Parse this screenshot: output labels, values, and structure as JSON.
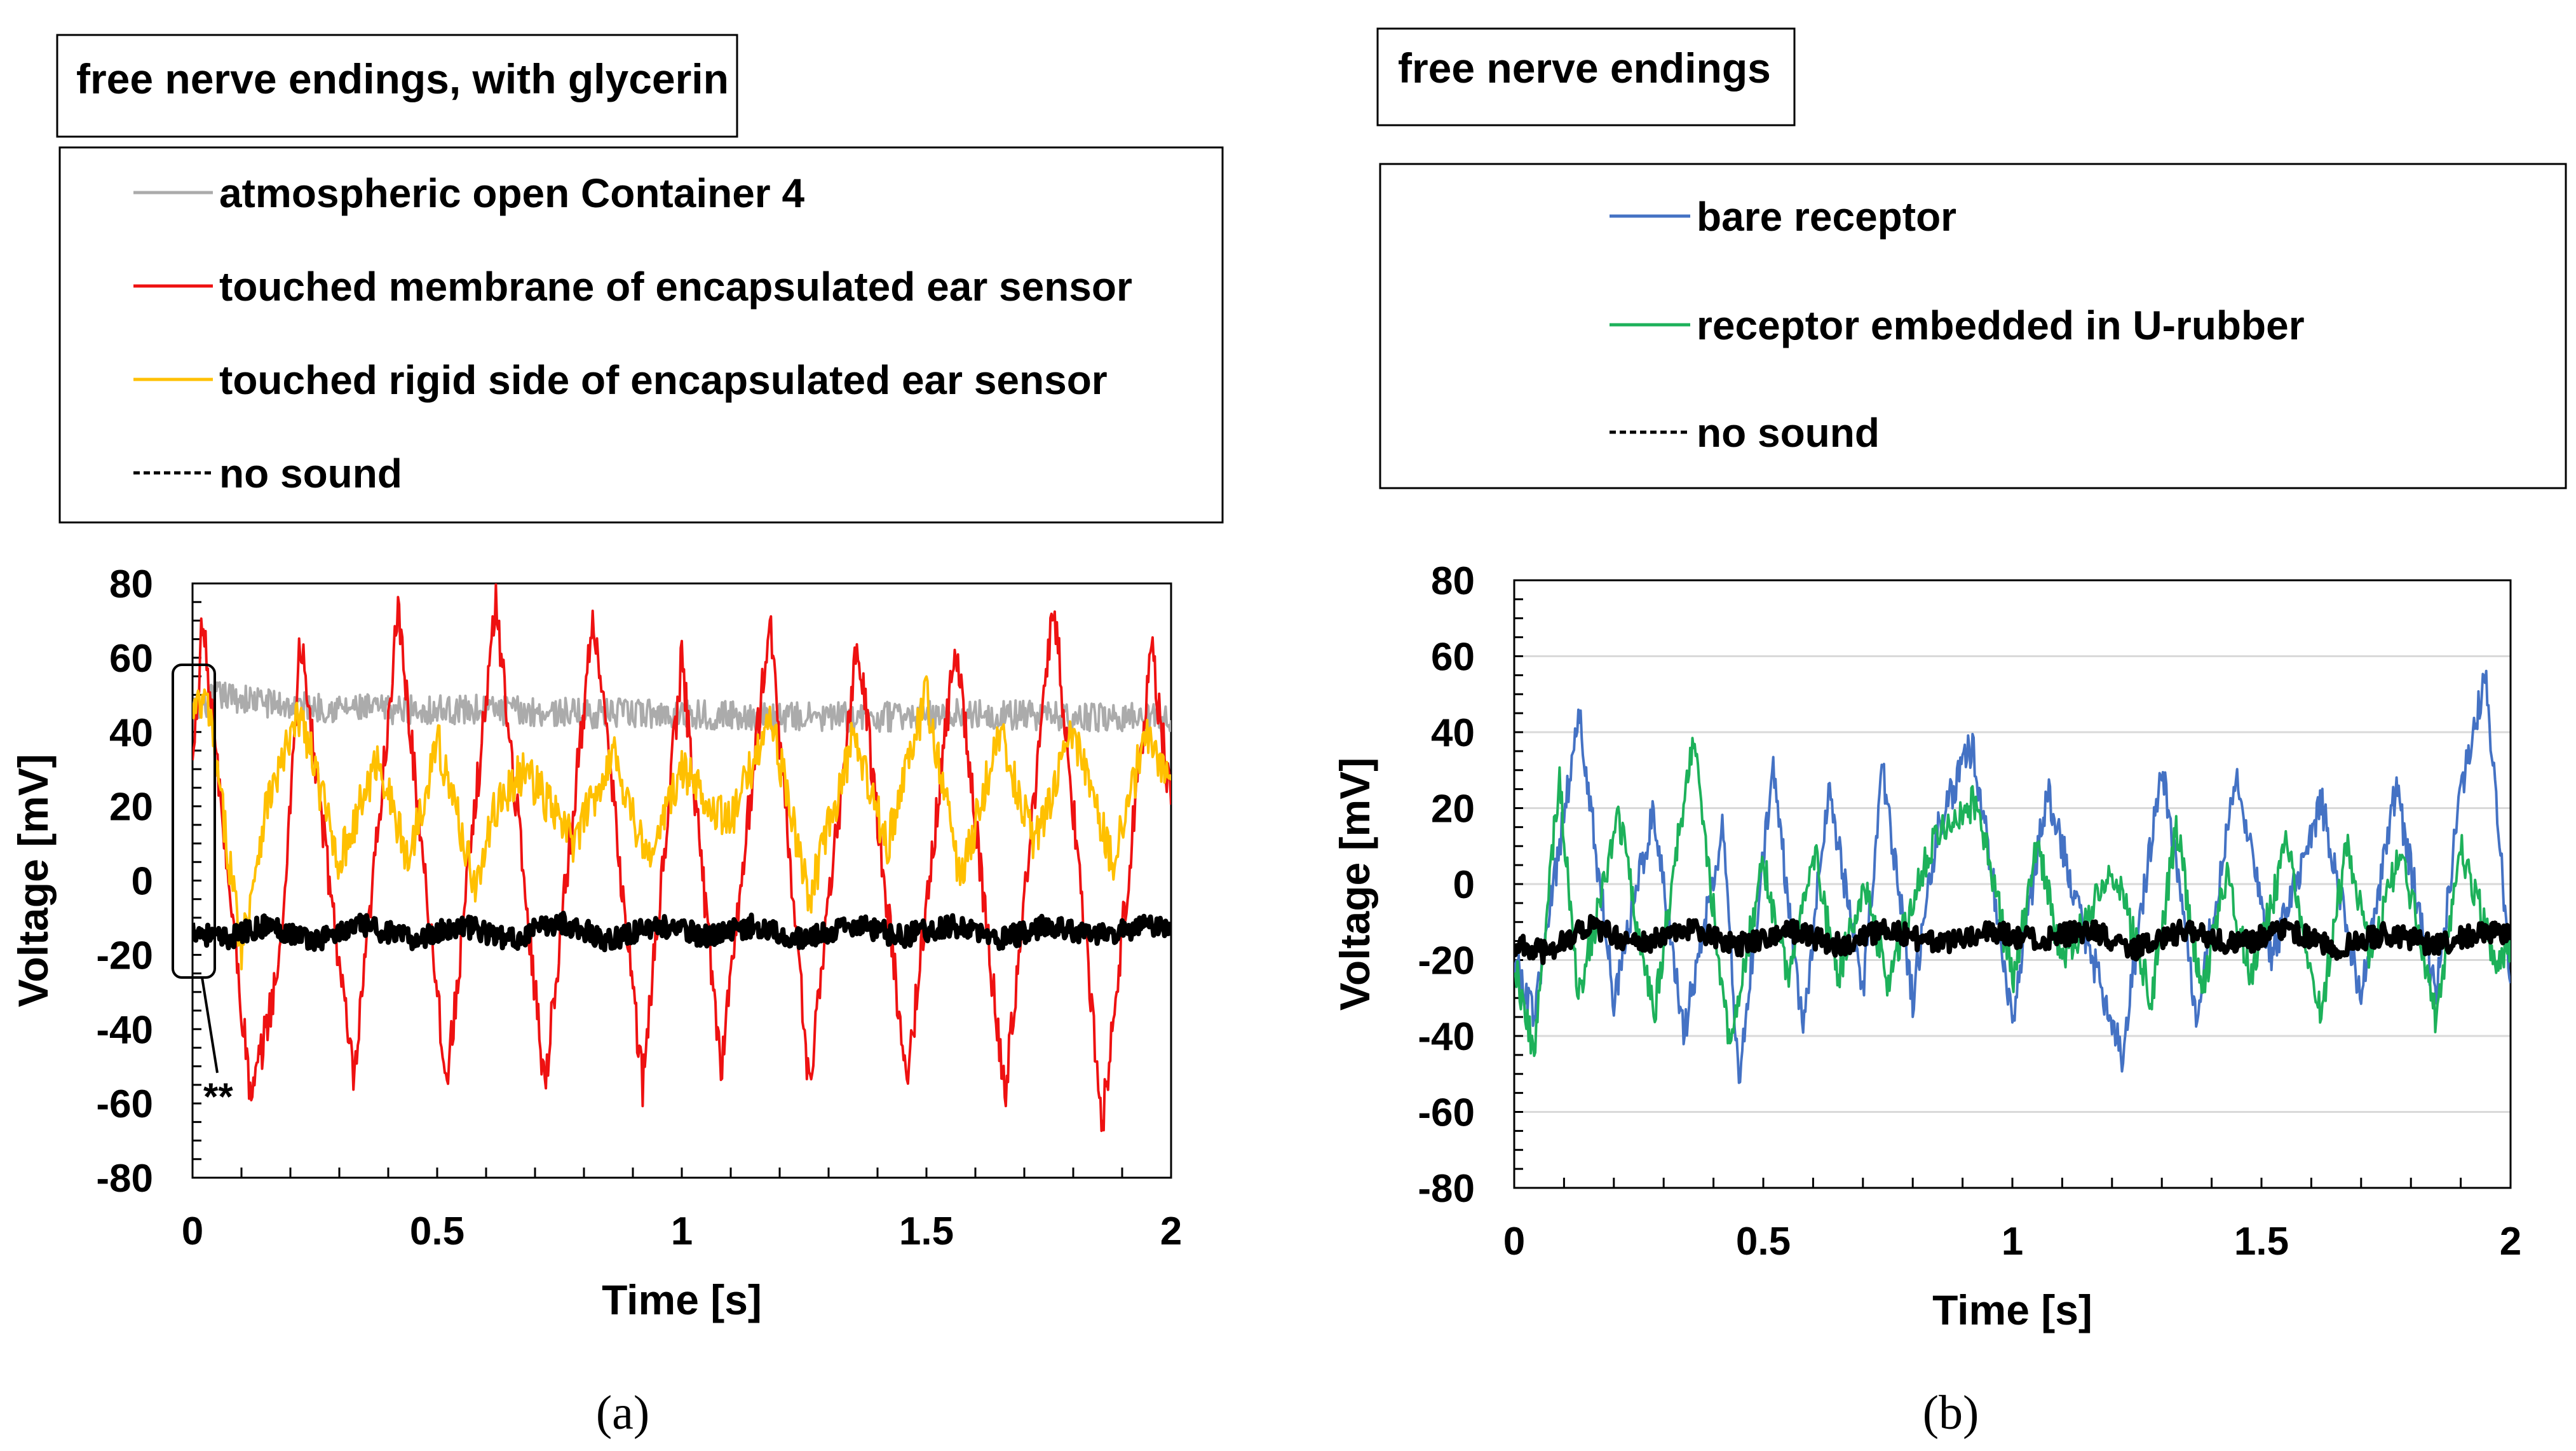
{
  "colors": {
    "gray": "#ababab",
    "red": "#ee1111",
    "yellow": "#ffc000",
    "black": "#000000",
    "blue": "#4472c4",
    "green": "#1db15a",
    "grid": "#d9d9d9"
  },
  "panel_a": {
    "title": "free nerve endings, with glycerin",
    "caption": "(a)",
    "annotation": "**",
    "legend": [
      {
        "label": "atmospheric open Container 4",
        "color": "#ababab",
        "dash": false
      },
      {
        "label": "touched membrane of encapsulated ear sensor",
        "color": "#ee1111",
        "dash": false
      },
      {
        "label": "touched rigid side of encapsulated ear sensor",
        "color": "#ffc000",
        "dash": false
      },
      {
        "label": "no sound",
        "color": "#000000",
        "dash": true
      }
    ]
  },
  "panel_b": {
    "title": "free nerve endings",
    "caption": "(b)",
    "legend": [
      {
        "label": "bare receptor",
        "color": "#4472c4",
        "dash": false
      },
      {
        "label": "receptor embedded in U-rubber",
        "color": "#1db15a",
        "dash": false
      },
      {
        "label": "no sound",
        "color": "#000000",
        "dash": true
      }
    ]
  },
  "chart_data": [
    {
      "type": "line",
      "title": "free nerve endings, with glycerin",
      "xlabel": "Time   [s]",
      "ylabel": "Voltage  [mV]",
      "xlim": [
        0,
        2
      ],
      "ylim": [
        -80,
        80
      ],
      "xticks": [
        "0",
        "0.5",
        "1",
        "1.5",
        "2"
      ],
      "yticks": [
        "80",
        "60",
        "40",
        "20",
        "0",
        "-20",
        "-40",
        "-60",
        "-80"
      ],
      "grid": false,
      "series": [
        {
          "name": "atmospheric open Container 4",
          "color": "#ababab",
          "noise": 4,
          "width": 4,
          "x": [
            0,
            0.05,
            0.2,
            0.4,
            0.6,
            0.8,
            1.0,
            1.2,
            1.4,
            1.6,
            1.8,
            2.0
          ],
          "y": [
            45,
            50,
            47,
            46,
            46,
            45,
            45,
            44,
            44,
            45,
            44,
            44
          ]
        },
        {
          "name": "touched membrane of encapsulated ear sensor",
          "color": "#ee1111",
          "noise": 6,
          "width": 4,
          "x": [
            0,
            0.02,
            0.12,
            0.18,
            0.22,
            0.33,
            0.42,
            0.52,
            0.62,
            0.72,
            0.82,
            0.92,
            1.0,
            1.08,
            1.18,
            1.26,
            1.36,
            1.46,
            1.56,
            1.66,
            1.76,
            1.86,
            1.96,
            2.0
          ],
          "y": [
            30,
            70,
            -60,
            -20,
            65,
            -55,
            72,
            -55,
            75,
            -55,
            72,
            -55,
            60,
            -50,
            70,
            -55,
            65,
            -55,
            65,
            -58,
            75,
            -65,
            62,
            20
          ]
        },
        {
          "name": "touched rigid side of encapsulated ear sensor",
          "color": "#ffc000",
          "noise": 6,
          "width": 4,
          "x": [
            0,
            0.03,
            0.1,
            0.15,
            0.22,
            0.3,
            0.38,
            0.44,
            0.5,
            0.58,
            0.62,
            0.68,
            0.78,
            0.86,
            0.93,
            1.0,
            1.1,
            1.18,
            1.26,
            1.35,
            1.42,
            1.5,
            1.57,
            1.65,
            1.72,
            1.8,
            1.88,
            1.95,
            2.0
          ],
          "y": [
            45,
            48,
            -18,
            20,
            45,
            5,
            33,
            5,
            38,
            -2,
            20,
            30,
            10,
            35,
            5,
            30,
            15,
            45,
            -5,
            38,
            10,
            50,
            0,
            40,
            10,
            40,
            5,
            40,
            25
          ]
        },
        {
          "name": "no sound",
          "color": "#000000",
          "noise": 3,
          "width": 8,
          "x": [
            0,
            0.06,
            0.15,
            0.25,
            0.35,
            0.45,
            0.55,
            0.65,
            0.75,
            0.85,
            0.95,
            1.05,
            1.15,
            1.25,
            1.35,
            1.45,
            1.55,
            1.65,
            1.75,
            1.85,
            1.95,
            2.0
          ],
          "y": [
            -13,
            -16,
            -12,
            -16,
            -12,
            -16,
            -12,
            -16,
            -11,
            -16,
            -12,
            -15,
            -12,
            -16,
            -12,
            -15,
            -12,
            -16,
            -12,
            -15,
            -12,
            -13
          ]
        }
      ]
    },
    {
      "type": "line",
      "title": "free nerve endings",
      "xlabel": "Time   [s]",
      "ylabel": "Voltage  [mV]",
      "xlim": [
        0,
        2
      ],
      "ylim": [
        -80,
        80
      ],
      "xticks": [
        "0",
        "0.5",
        "1",
        "1.5",
        "2"
      ],
      "yticks": [
        "80",
        "60",
        "40",
        "20",
        "0",
        "-20",
        "-40",
        "-60",
        "-80"
      ],
      "grid": true,
      "series": [
        {
          "name": "bare receptor",
          "color": "#4472c4",
          "noise": 5,
          "width": 4,
          "x": [
            0,
            0.04,
            0.13,
            0.2,
            0.28,
            0.34,
            0.42,
            0.45,
            0.52,
            0.58,
            0.63,
            0.7,
            0.74,
            0.8,
            0.85,
            0.92,
            1.0,
            1.07,
            1.15,
            1.22,
            1.3,
            1.37,
            1.45,
            1.52,
            1.62,
            1.7,
            1.77,
            1.85,
            1.9,
            1.95,
            2.0
          ],
          "y": [
            -20,
            -35,
            45,
            -30,
            20,
            -40,
            15,
            -52,
            30,
            -38,
            25,
            -28,
            30,
            -30,
            15,
            37,
            -35,
            25,
            -15,
            -45,
            32,
            -35,
            30,
            -20,
            22,
            -30,
            25,
            -30,
            25,
            55,
            -25
          ]
        },
        {
          "name": "receptor embedded in U-rubber",
          "color": "#1db15a",
          "noise": 5,
          "width": 4,
          "x": [
            0,
            0.04,
            0.09,
            0.13,
            0.21,
            0.28,
            0.36,
            0.43,
            0.5,
            0.55,
            0.6,
            0.65,
            0.7,
            0.75,
            0.85,
            0.93,
            1.0,
            1.05,
            1.1,
            1.15,
            1.2,
            1.28,
            1.33,
            1.38,
            1.43,
            1.48,
            1.55,
            1.62,
            1.67,
            1.72,
            1.78,
            1.85,
            1.9,
            1.97,
            2.0
          ],
          "y": [
            -20,
            -45,
            28,
            -30,
            18,
            -35,
            40,
            -42,
            5,
            -25,
            10,
            -25,
            0,
            -25,
            15,
            22,
            -25,
            10,
            -20,
            -10,
            5,
            -30,
            15,
            -30,
            3,
            -25,
            10,
            -35,
            10,
            -20,
            10,
            -35,
            10,
            -20,
            -15
          ]
        },
        {
          "name": "no sound",
          "color": "#000000",
          "noise": 3,
          "width": 8,
          "x": [
            0,
            0.06,
            0.15,
            0.25,
            0.35,
            0.45,
            0.55,
            0.65,
            0.75,
            0.85,
            0.95,
            1.05,
            1.15,
            1.25,
            1.35,
            1.45,
            1.55,
            1.65,
            1.75,
            1.85,
            1.95,
            2.0
          ],
          "y": [
            -16,
            -18,
            -11,
            -16,
            -12,
            -16,
            -12,
            -16,
            -12,
            -16,
            -12,
            -15,
            -12,
            -17,
            -12,
            -16,
            -12,
            -17,
            -13,
            -16,
            -12,
            -14
          ]
        }
      ]
    }
  ]
}
